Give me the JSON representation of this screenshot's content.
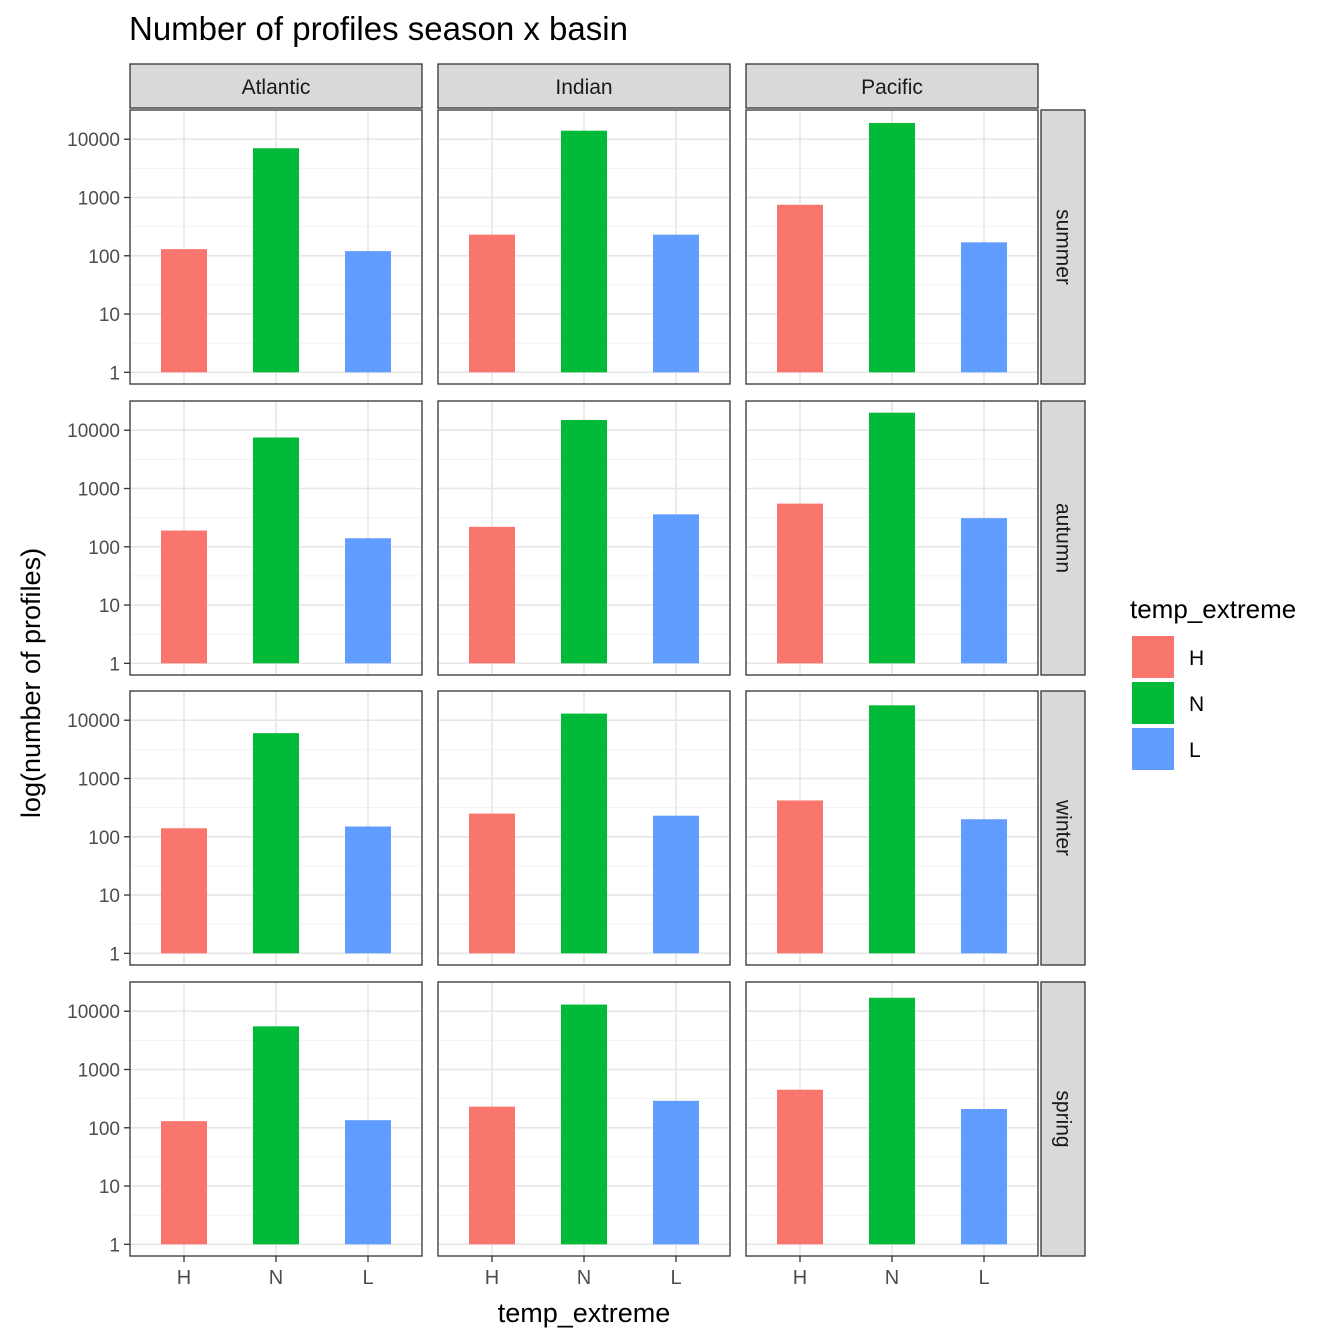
{
  "chart_data": {
    "type": "bar",
    "title": "Number of profiles season x basin",
    "xlabel": "temp_extreme",
    "ylabel": "log(number of profiles)",
    "y_scale": "log10",
    "ylim": [
      1,
      20000
    ],
    "y_ticks": [
      1,
      10,
      100,
      1000,
      10000
    ],
    "y_tick_labels": [
      "1",
      "10",
      "100",
      "1000",
      "10000"
    ],
    "grid": true,
    "categories": [
      "H",
      "N",
      "L"
    ],
    "columns": [
      "Atlantic",
      "Indian",
      "Pacific"
    ],
    "rows": [
      "summer",
      "autumn",
      "winter",
      "spring"
    ],
    "legend": {
      "title": "temp_extreme",
      "position": "right",
      "entries": [
        {
          "label": "H",
          "color": "#F8766D"
        },
        {
          "label": "N",
          "color": "#00BA38"
        },
        {
          "label": "L",
          "color": "#619CFF"
        }
      ]
    },
    "panels": [
      {
        "row": "summer",
        "column": "Atlantic",
        "values": [
          130,
          7000,
          120
        ]
      },
      {
        "row": "summer",
        "column": "Indian",
        "values": [
          230,
          14000,
          230
        ]
      },
      {
        "row": "summer",
        "column": "Pacific",
        "values": [
          750,
          19000,
          170
        ]
      },
      {
        "row": "autumn",
        "column": "Atlantic",
        "values": [
          190,
          7500,
          140
        ]
      },
      {
        "row": "autumn",
        "column": "Indian",
        "values": [
          220,
          15000,
          360
        ]
      },
      {
        "row": "autumn",
        "column": "Pacific",
        "values": [
          550,
          20000,
          310
        ]
      },
      {
        "row": "winter",
        "column": "Atlantic",
        "values": [
          140,
          6000,
          150
        ]
      },
      {
        "row": "winter",
        "column": "Indian",
        "values": [
          250,
          13000,
          230
        ]
      },
      {
        "row": "winter",
        "column": "Pacific",
        "values": [
          420,
          18000,
          200
        ]
      },
      {
        "row": "spring",
        "column": "Atlantic",
        "values": [
          130,
          5500,
          135
        ]
      },
      {
        "row": "spring",
        "column": "Indian",
        "values": [
          230,
          13000,
          290
        ]
      },
      {
        "row": "spring",
        "column": "Pacific",
        "values": [
          450,
          17000,
          210
        ]
      }
    ]
  }
}
